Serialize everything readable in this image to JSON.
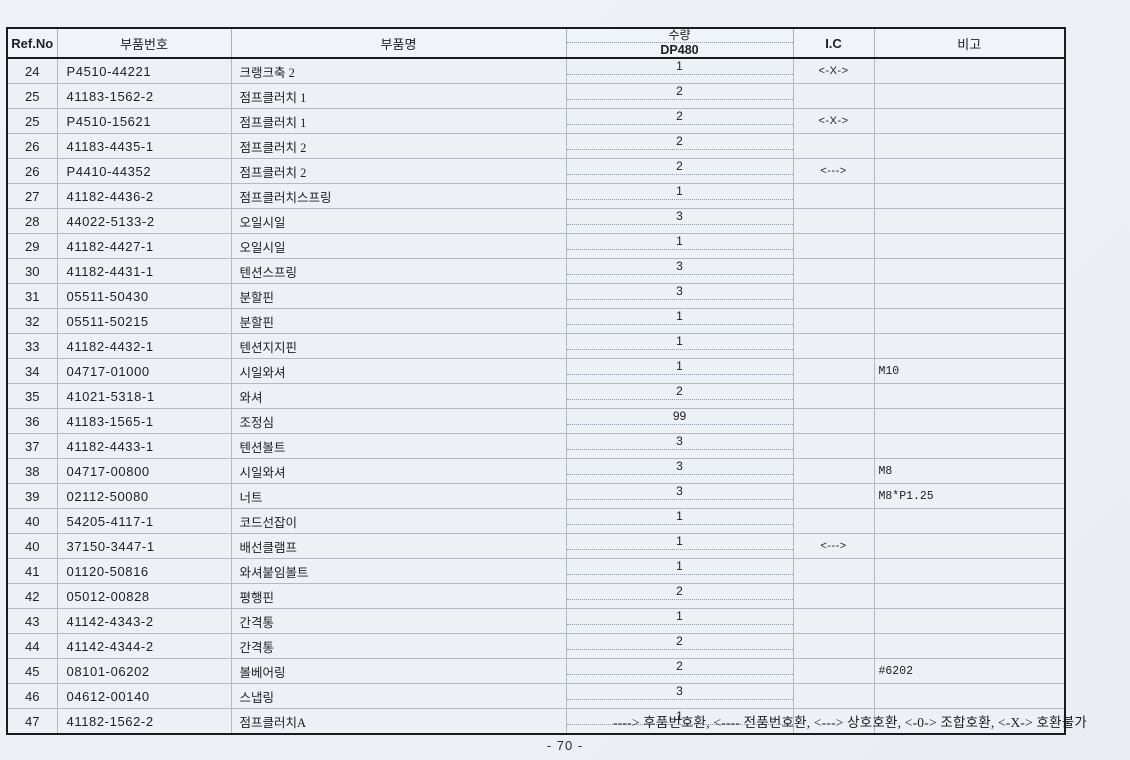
{
  "page": {
    "footer_legend": "----> 후품번호환, <---- 전품번호환, <---> 상호호환, <-0-> 조합호환, <-X-> 호환불가",
    "page_number": "- 70 -"
  },
  "table": {
    "headers": {
      "ref_no": "Ref.No",
      "part_number": "부품번호",
      "part_name": "부품명",
      "qty": "수량",
      "qty_model": "DP480",
      "ic": "I.C",
      "remarks": "비고"
    },
    "rows": [
      {
        "ref": "24",
        "part_number": "P4510-44221",
        "part_name": "크랭크축 2",
        "qty": "1",
        "ic": "<-X->",
        "remark": ""
      },
      {
        "ref": "25",
        "part_number": "41183-1562-2",
        "part_name": "점프클러치 1",
        "qty": "2",
        "ic": "",
        "remark": ""
      },
      {
        "ref": "25",
        "part_number": "P4510-15621",
        "part_name": "점프클러치 1",
        "qty": "2",
        "ic": "<-X->",
        "remark": ""
      },
      {
        "ref": "26",
        "part_number": "41183-4435-1",
        "part_name": "점프클러치 2",
        "qty": "2",
        "ic": "",
        "remark": ""
      },
      {
        "ref": "26",
        "part_number": "P4410-44352",
        "part_name": "점프클러치 2",
        "qty": "2",
        "ic": "<--->",
        "remark": ""
      },
      {
        "ref": "27",
        "part_number": "41182-4436-2",
        "part_name": "점프클러치스프링",
        "qty": "1",
        "ic": "",
        "remark": ""
      },
      {
        "ref": "28",
        "part_number": "44022-5133-2",
        "part_name": "오일시일",
        "qty": "3",
        "ic": "",
        "remark": ""
      },
      {
        "ref": "29",
        "part_number": "41182-4427-1",
        "part_name": "오일시일",
        "qty": "1",
        "ic": "",
        "remark": ""
      },
      {
        "ref": "30",
        "part_number": "41182-4431-1",
        "part_name": "텐션스프링",
        "qty": "3",
        "ic": "",
        "remark": ""
      },
      {
        "ref": "31",
        "part_number": "05511-50430",
        "part_name": "분할핀",
        "qty": "3",
        "ic": "",
        "remark": ""
      },
      {
        "ref": "32",
        "part_number": "05511-50215",
        "part_name": "분할핀",
        "qty": "1",
        "ic": "",
        "remark": ""
      },
      {
        "ref": "33",
        "part_number": "41182-4432-1",
        "part_name": "텐션지지핀",
        "qty": "1",
        "ic": "",
        "remark": ""
      },
      {
        "ref": "34",
        "part_number": "04717-01000",
        "part_name": "시일와셔",
        "qty": "1",
        "ic": "",
        "remark": "M10"
      },
      {
        "ref": "35",
        "part_number": "41021-5318-1",
        "part_name": "와셔",
        "qty": "2",
        "ic": "",
        "remark": ""
      },
      {
        "ref": "36",
        "part_number": "41183-1565-1",
        "part_name": "조정심",
        "qty": "99",
        "ic": "",
        "remark": ""
      },
      {
        "ref": "37",
        "part_number": "41182-4433-1",
        "part_name": "텐션볼트",
        "qty": "3",
        "ic": "",
        "remark": ""
      },
      {
        "ref": "38",
        "part_number": "04717-00800",
        "part_name": "시일와셔",
        "qty": "3",
        "ic": "",
        "remark": "M8"
      },
      {
        "ref": "39",
        "part_number": "02112-50080",
        "part_name": "너트",
        "qty": "3",
        "ic": "",
        "remark": "M8*P1.25"
      },
      {
        "ref": "40",
        "part_number": "54205-4117-1",
        "part_name": "코드선잡이",
        "qty": "1",
        "ic": "",
        "remark": ""
      },
      {
        "ref": "40",
        "part_number": "37150-3447-1",
        "part_name": "배선클램프",
        "qty": "1",
        "ic": "<--->",
        "remark": ""
      },
      {
        "ref": "41",
        "part_number": "01120-50816",
        "part_name": "와셔붙임볼트",
        "qty": "1",
        "ic": "",
        "remark": ""
      },
      {
        "ref": "42",
        "part_number": "05012-00828",
        "part_name": "평행핀",
        "qty": "2",
        "ic": "",
        "remark": ""
      },
      {
        "ref": "43",
        "part_number": "41142-4343-2",
        "part_name": "간격통",
        "qty": "1",
        "ic": "",
        "remark": ""
      },
      {
        "ref": "44",
        "part_number": "41142-4344-2",
        "part_name": "간격통",
        "qty": "2",
        "ic": "",
        "remark": ""
      },
      {
        "ref": "45",
        "part_number": "08101-06202",
        "part_name": "볼베어링",
        "qty": "2",
        "ic": "",
        "remark": "#6202"
      },
      {
        "ref": "46",
        "part_number": "04612-00140",
        "part_name": "스냅링",
        "qty": "3",
        "ic": "",
        "remark": ""
      },
      {
        "ref": "47",
        "part_number": "41182-1562-2",
        "part_name": "점프클러치A",
        "qty": "1",
        "ic": "",
        "remark": ""
      }
    ]
  }
}
